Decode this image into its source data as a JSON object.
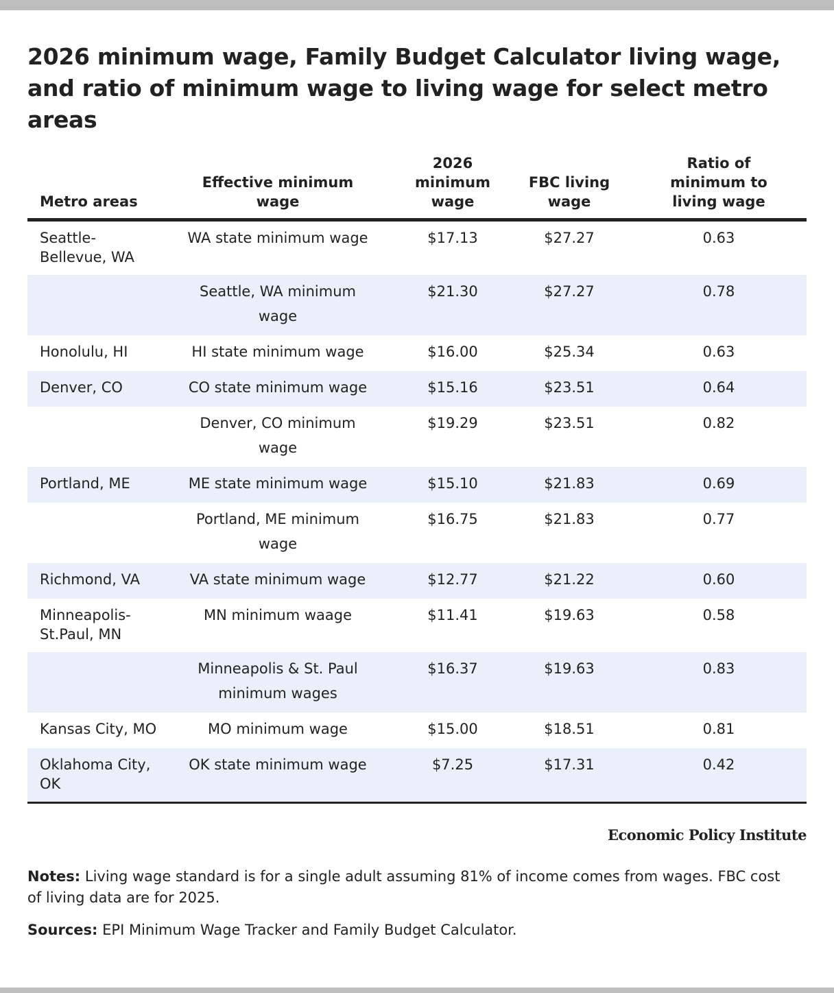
{
  "header": {
    "title": "2026 minimum wage, Family Budget Calculator living wage, and ratio of minimum wage to living wage for select metro areas"
  },
  "table": {
    "columns": [
      "Metro areas",
      "Effective minimum wage",
      "2026 minimum wage",
      "FBC living wage",
      "Ratio of minimum to living wage"
    ],
    "rows": [
      [
        "Seattle-Bellevue, WA",
        "WA state minimum wage",
        "$17.13",
        "$27.27",
        "0.63"
      ],
      [
        null,
        "Seattle, WA minimum wage",
        "$21.30",
        "$27.27",
        "0.78"
      ],
      [
        "Honolulu, HI",
        "HI state minimum wage",
        "$16.00",
        "$25.34",
        "0.63"
      ],
      [
        "Denver, CO",
        "CO state minimum wage",
        "$15.16",
        "$23.51",
        "0.64"
      ],
      [
        null,
        "Denver, CO minimum wage",
        "$19.29",
        "$23.51",
        "0.82"
      ],
      [
        "Portland, ME",
        "ME state minimum wage",
        "$15.10",
        "$21.83",
        "0.69"
      ],
      [
        null,
        "Portland, ME minimum wage",
        "$16.75",
        "$21.83",
        "0.77"
      ],
      [
        "Richmond, VA",
        "VA state minimum wage",
        "$12.77",
        "$21.22",
        "0.60"
      ],
      [
        "Minneapolis-St.Paul, MN",
        "MN minimum waage",
        "$11.41",
        "$19.63",
        "0.58"
      ],
      [
        null,
        "Minneapolis & St. Paul minimum wages",
        "$16.37",
        "$19.63",
        "0.83"
      ],
      [
        "Kansas City, MO",
        "MO minimum wage",
        "$15.00",
        "$18.51",
        "0.81"
      ],
      [
        "Oklahoma City, OK",
        "OK state minimum wage",
        "$7.25",
        "$17.31",
        "0.42"
      ]
    ]
  },
  "footer": {
    "brand": "Economic Policy Institute",
    "notes": {
      "label": "Notes:",
      "text": "Living wage standard is for a single adult assuming 81% of income comes from wages. FBC cost of living data are for 2025."
    },
    "sources": {
      "label": "Sources:",
      "text": "EPI Minimum Wage Tracker and Family Budget Calculator."
    }
  }
}
